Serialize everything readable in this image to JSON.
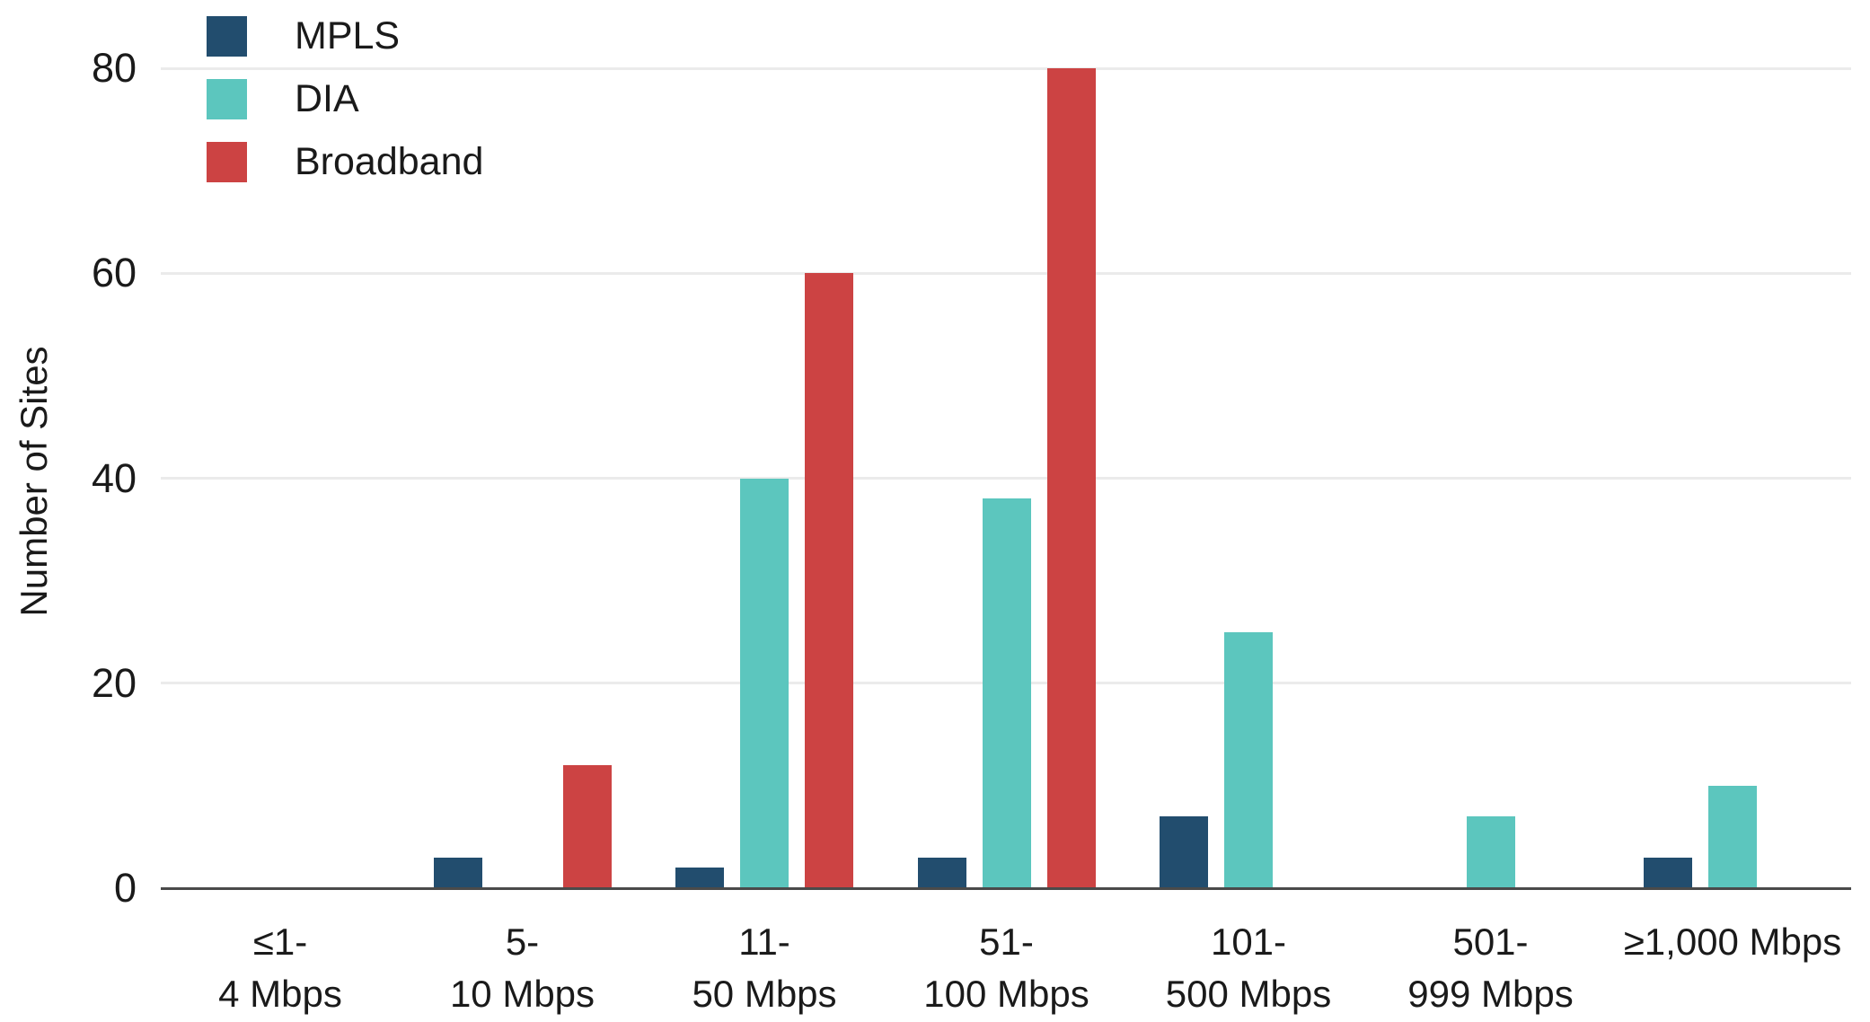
{
  "chart_data": {
    "type": "bar",
    "title": "",
    "xlabel": "",
    "ylabel": "Number of Sites",
    "ylim": [
      0,
      80
    ],
    "yticks": [
      0,
      20,
      40,
      60,
      80
    ],
    "grid": true,
    "legend_position": "top-left",
    "categories": [
      [
        "≤1-",
        "4 Mbps"
      ],
      [
        "5-",
        "10 Mbps"
      ],
      [
        "11-",
        "50 Mbps"
      ],
      [
        "51-",
        "100 Mbps"
      ],
      [
        "101-",
        "500 Mbps"
      ],
      [
        "501-",
        "999 Mbps"
      ],
      [
        "≥1,000 Mbps",
        ""
      ]
    ],
    "series": [
      {
        "name": "MPLS",
        "color": "#224d6e",
        "values": [
          0,
          3,
          2,
          3,
          7,
          0,
          3
        ]
      },
      {
        "name": "DIA",
        "color": "#5cc6be",
        "values": [
          0,
          0,
          40,
          38,
          25,
          7,
          10
        ]
      },
      {
        "name": "Broadband",
        "color": "#cc4343",
        "values": [
          0,
          12,
          60,
          80,
          0,
          0,
          0
        ]
      }
    ]
  },
  "axis": {
    "ylabel": "Number of Sites",
    "ytick_labels": [
      "0",
      "20",
      "40",
      "60",
      "80"
    ]
  },
  "legend": [
    {
      "label": "MPLS",
      "color": "#224d6e"
    },
    {
      "label": "DIA",
      "color": "#5cc6be"
    },
    {
      "label": "Broadband",
      "color": "#cc4343"
    }
  ],
  "colors": {
    "gridline": "#ebebeb",
    "baseline": "#4a4a4a",
    "text": "#1a1a1a"
  }
}
